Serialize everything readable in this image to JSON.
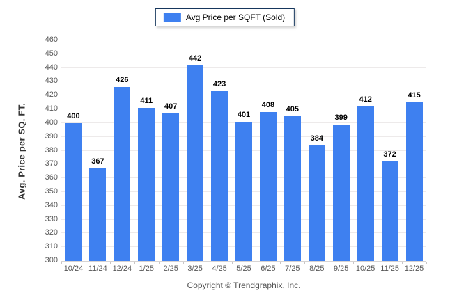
{
  "chart_data": {
    "type": "bar",
    "title": "",
    "legend_label": "Avg Price per SQFT (Sold)",
    "legend_position": "top-center",
    "categories": [
      "10/24",
      "11/24",
      "12/24",
      "1/25",
      "2/25",
      "3/25",
      "4/25",
      "5/25",
      "6/25",
      "7/25",
      "8/25",
      "9/25",
      "10/25",
      "11/25",
      "12/25"
    ],
    "series": [
      {
        "name": "Avg Price per SQFT (Sold)",
        "values": [
          400,
          367,
          426,
          411,
          407,
          442,
          423,
          401,
          408,
          405,
          384,
          399,
          412,
          372,
          415
        ]
      }
    ],
    "xlabel": "",
    "ylabel": "Avg. Price per SQ. FT.",
    "ylim": [
      300,
      460
    ],
    "ytick_step": 10,
    "grid": "horizontal"
  },
  "colors": {
    "bar": "#3e80f0",
    "legend_border": "#16365c",
    "gridline": "#edeaea",
    "axis_line": "#d6d3d3",
    "tick_text": "#575757",
    "value_text": "#000000"
  },
  "footer": {
    "copyright": "Copyright © Trendgraphix, Inc."
  }
}
